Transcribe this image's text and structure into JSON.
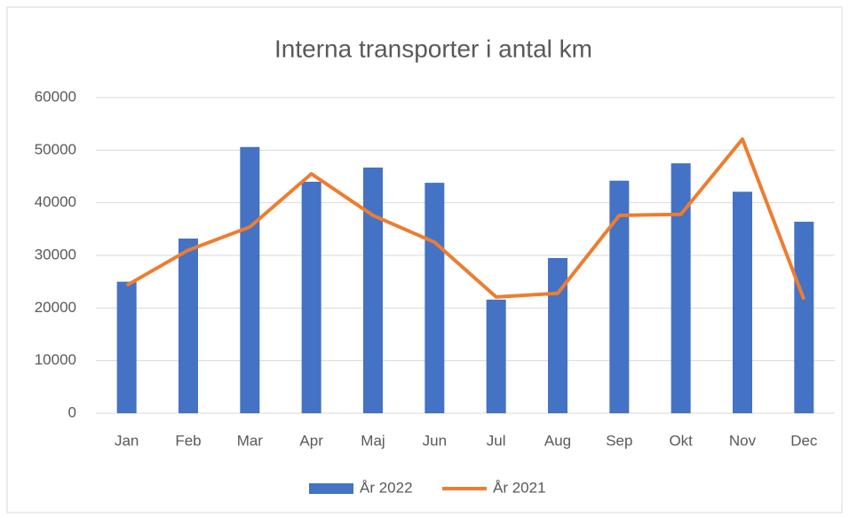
{
  "chart_data": {
    "type": "bar",
    "title": "Interna transporter i antal km",
    "categories": [
      "Jan",
      "Feb",
      "Mar",
      "Apr",
      "Maj",
      "Jun",
      "Jul",
      "Aug",
      "Sep",
      "Okt",
      "Nov",
      "Dec"
    ],
    "series": [
      {
        "name": "År 2022",
        "type": "bar",
        "color": "#4472c4",
        "values": [
          25000,
          33200,
          50600,
          44000,
          46700,
          43800,
          21600,
          29500,
          44200,
          47500,
          42100,
          36400
        ]
      },
      {
        "name": "År 2021",
        "type": "line",
        "color": "#ed7d31",
        "values": [
          24300,
          31000,
          35400,
          45500,
          37600,
          32500,
          22100,
          22800,
          37600,
          37800,
          52100,
          21600
        ]
      }
    ],
    "ylim": [
      0,
      60000
    ],
    "yticks": [
      0,
      10000,
      20000,
      30000,
      40000,
      50000,
      60000
    ],
    "grid": true,
    "legend": "bottom"
  }
}
